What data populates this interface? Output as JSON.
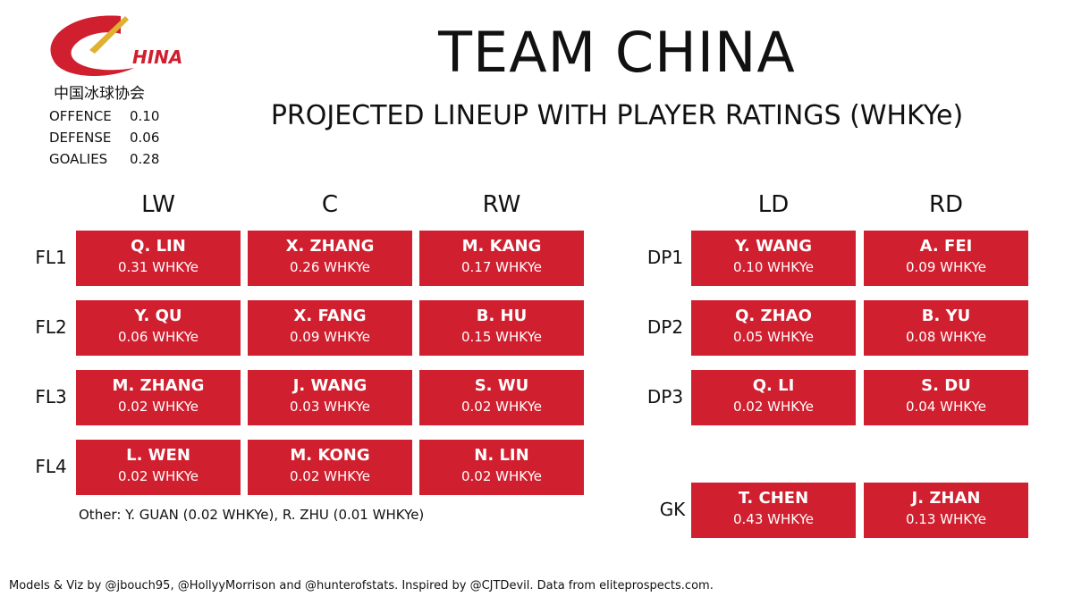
{
  "header": {
    "title": "TEAM CHINA",
    "subtitle": "PROJECTED LINEUP WITH PLAYER RATINGS (WHKYe)"
  },
  "logo": {
    "wordmark": "HINA",
    "name": "中国冰球协会"
  },
  "summary": [
    [
      "OFFENCE",
      "0.10"
    ],
    [
      "DEFENSE",
      "0.06"
    ],
    [
      "GOALIES",
      "0.28"
    ]
  ],
  "forwards": {
    "columns": [
      "LW",
      "C",
      "RW"
    ],
    "lines": [
      {
        "label": "FL1",
        "players": [
          {
            "name": "Q. LIN",
            "rating": "0.31 WHKYe"
          },
          {
            "name": "X. ZHANG",
            "rating": "0.26 WHKYe"
          },
          {
            "name": "M. KANG",
            "rating": "0.17 WHKYe"
          }
        ]
      },
      {
        "label": "FL2",
        "players": [
          {
            "name": "Y. QU",
            "rating": "0.06 WHKYe"
          },
          {
            "name": "X. FANG",
            "rating": "0.09 WHKYe"
          },
          {
            "name": "B. HU",
            "rating": "0.15 WHKYe"
          }
        ]
      },
      {
        "label": "FL3",
        "players": [
          {
            "name": "M. ZHANG",
            "rating": "0.02 WHKYe"
          },
          {
            "name": "J. WANG",
            "rating": "0.03 WHKYe"
          },
          {
            "name": "S. WU",
            "rating": "0.02 WHKYe"
          }
        ]
      },
      {
        "label": "FL4",
        "players": [
          {
            "name": "L. WEN",
            "rating": "0.02 WHKYe"
          },
          {
            "name": "M. KONG",
            "rating": "0.02 WHKYe"
          },
          {
            "name": "N. LIN",
            "rating": "0.02 WHKYe"
          }
        ]
      }
    ]
  },
  "defense": {
    "columns": [
      "LD",
      "RD"
    ],
    "lines": [
      {
        "label": "DP1",
        "players": [
          {
            "name": "Y. WANG",
            "rating": "0.10 WHKYe"
          },
          {
            "name": "A. FEI",
            "rating": "0.09 WHKYe"
          }
        ]
      },
      {
        "label": "DP2",
        "players": [
          {
            "name": "Q. ZHAO",
            "rating": "0.05 WHKYe"
          },
          {
            "name": "B. YU",
            "rating": "0.08 WHKYe"
          }
        ]
      },
      {
        "label": "DP3",
        "players": [
          {
            "name": "Q. LI",
            "rating": "0.02 WHKYe"
          },
          {
            "name": "S. DU",
            "rating": "0.04 WHKYe"
          }
        ]
      }
    ]
  },
  "goalies": {
    "label": "GK",
    "players": [
      {
        "name": "T. CHEN",
        "rating": "0.43 WHKYe"
      },
      {
        "name": "J. ZHAN",
        "rating": "0.13 WHKYe"
      }
    ]
  },
  "other": "Other: Y. GUAN (0.02 WHKYe), R. ZHU (0.01 WHKYe)",
  "footer": "Models & Viz by @jbouch95, @HollyyMorrison and @hunterofstats. Inspired by @CJTDevil. Data from eliteprospects.com."
}
